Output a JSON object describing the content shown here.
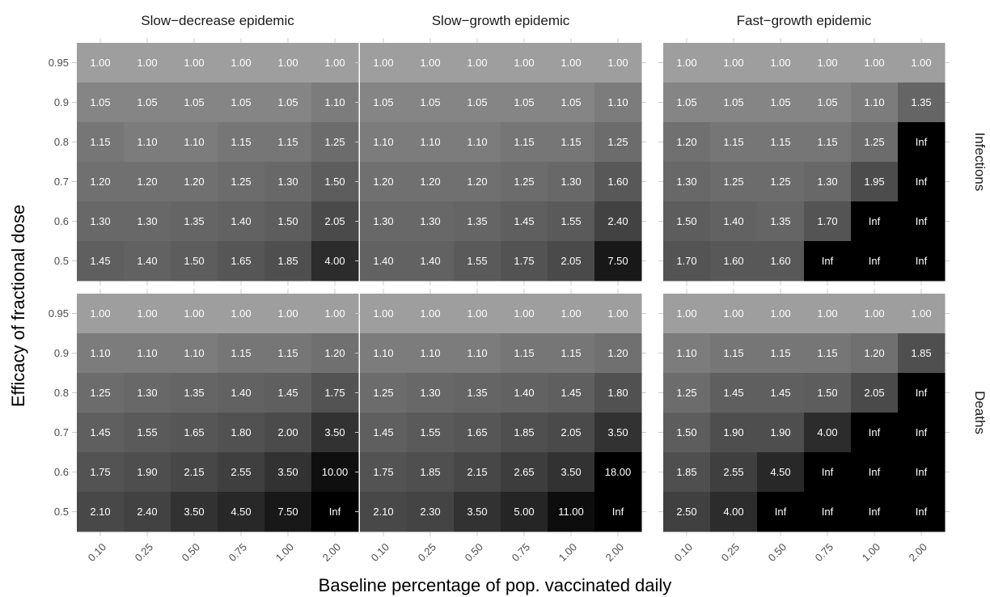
{
  "chart_data": {
    "type": "heatmap",
    "xlabel": "Baseline percentage of pop. vaccinated daily",
    "ylabel": "Efficacy of fractional dose",
    "x_categories": [
      "0.10",
      "0.25",
      "0.50",
      "0.75",
      "1.00",
      "2.00"
    ],
    "y_categories": [
      "0.95",
      "0.9",
      "0.8",
      "0.7",
      "0.6",
      "0.5"
    ],
    "columns": [
      "Slow−decrease epidemic",
      "Slow−growth epidemic",
      "Fast−growth epidemic"
    ],
    "rows": [
      "Infections",
      "Deaths"
    ],
    "panels": [
      {
        "column": "Slow−decrease epidemic",
        "row": "Infections",
        "values": [
          [
            "1.00",
            "1.00",
            "1.00",
            "1.00",
            "1.00",
            "1.00"
          ],
          [
            "1.05",
            "1.05",
            "1.05",
            "1.05",
            "1.05",
            "1.10"
          ],
          [
            "1.15",
            "1.10",
            "1.10",
            "1.15",
            "1.15",
            "1.25"
          ],
          [
            "1.20",
            "1.20",
            "1.20",
            "1.25",
            "1.30",
            "1.50"
          ],
          [
            "1.30",
            "1.30",
            "1.35",
            "1.40",
            "1.50",
            "2.05"
          ],
          [
            "1.45",
            "1.40",
            "1.50",
            "1.65",
            "1.85",
            "4.00"
          ]
        ]
      },
      {
        "column": "Slow−growth epidemic",
        "row": "Infections",
        "values": [
          [
            "1.00",
            "1.00",
            "1.00",
            "1.00",
            "1.00",
            "1.00"
          ],
          [
            "1.05",
            "1.05",
            "1.05",
            "1.05",
            "1.05",
            "1.10"
          ],
          [
            "1.10",
            "1.10",
            "1.10",
            "1.15",
            "1.15",
            "1.25"
          ],
          [
            "1.20",
            "1.20",
            "1.20",
            "1.25",
            "1.30",
            "1.60"
          ],
          [
            "1.30",
            "1.30",
            "1.35",
            "1.45",
            "1.55",
            "2.40"
          ],
          [
            "1.40",
            "1.40",
            "1.55",
            "1.75",
            "2.05",
            "7.50"
          ]
        ]
      },
      {
        "column": "Fast−growth epidemic",
        "row": "Infections",
        "values": [
          [
            "1.00",
            "1.00",
            "1.00",
            "1.00",
            "1.00",
            "1.00"
          ],
          [
            "1.05",
            "1.05",
            "1.05",
            "1.05",
            "1.10",
            "1.35"
          ],
          [
            "1.20",
            "1.15",
            "1.15",
            "1.15",
            "1.25",
            "Inf"
          ],
          [
            "1.30",
            "1.25",
            "1.25",
            "1.30",
            "1.95",
            "Inf"
          ],
          [
            "1.50",
            "1.40",
            "1.35",
            "1.70",
            "Inf",
            "Inf"
          ],
          [
            "1.70",
            "1.60",
            "1.60",
            "Inf",
            "Inf",
            "Inf"
          ]
        ]
      },
      {
        "column": "Slow−decrease epidemic",
        "row": "Deaths",
        "values": [
          [
            "1.00",
            "1.00",
            "1.00",
            "1.00",
            "1.00",
            "1.00"
          ],
          [
            "1.10",
            "1.10",
            "1.10",
            "1.15",
            "1.15",
            "1.20"
          ],
          [
            "1.25",
            "1.30",
            "1.35",
            "1.40",
            "1.45",
            "1.75"
          ],
          [
            "1.45",
            "1.55",
            "1.65",
            "1.80",
            "2.00",
            "3.50"
          ],
          [
            "1.75",
            "1.90",
            "2.15",
            "2.55",
            "3.50",
            "10.00"
          ],
          [
            "2.10",
            "2.40",
            "3.50",
            "4.50",
            "7.50",
            "Inf"
          ]
        ]
      },
      {
        "column": "Slow−growth epidemic",
        "row": "Deaths",
        "values": [
          [
            "1.00",
            "1.00",
            "1.00",
            "1.00",
            "1.00",
            "1.00"
          ],
          [
            "1.10",
            "1.10",
            "1.10",
            "1.15",
            "1.15",
            "1.20"
          ],
          [
            "1.25",
            "1.30",
            "1.35",
            "1.40",
            "1.45",
            "1.80"
          ],
          [
            "1.45",
            "1.55",
            "1.65",
            "1.85",
            "2.05",
            "3.50"
          ],
          [
            "1.75",
            "1.85",
            "2.15",
            "2.65",
            "3.50",
            "18.00"
          ],
          [
            "2.10",
            "2.30",
            "3.50",
            "5.00",
            "11.00",
            "Inf"
          ]
        ]
      },
      {
        "column": "Fast−growth epidemic",
        "row": "Deaths",
        "values": [
          [
            "1.00",
            "1.00",
            "1.00",
            "1.00",
            "1.00",
            "1.00"
          ],
          [
            "1.10",
            "1.15",
            "1.15",
            "1.15",
            "1.20",
            "1.85"
          ],
          [
            "1.25",
            "1.45",
            "1.45",
            "1.50",
            "2.05",
            "Inf"
          ],
          [
            "1.50",
            "1.90",
            "1.90",
            "4.00",
            "Inf",
            "Inf"
          ],
          [
            "1.85",
            "2.55",
            "4.50",
            "Inf",
            "Inf",
            "Inf"
          ],
          [
            "2.50",
            "4.00",
            "Inf",
            "Inf",
            "Inf",
            "Inf"
          ]
        ]
      }
    ],
    "color_scale": {
      "low": "#9e9e9e",
      "high": "#000000",
      "inf": "#000000"
    }
  }
}
